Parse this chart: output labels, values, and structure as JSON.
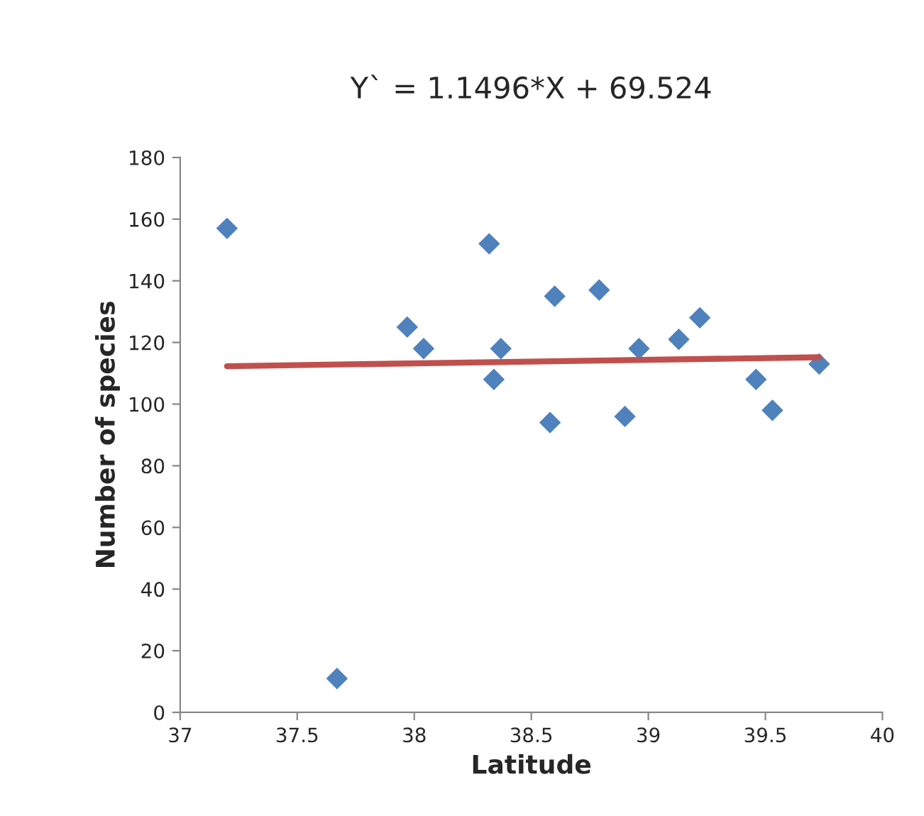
{
  "chart_data": {
    "type": "scatter",
    "title": "Y` = 1.1496*X + 69.524",
    "xlabel": "Latitude",
    "ylabel": "Number of species",
    "marker": "diamond",
    "grid": false,
    "legend": false,
    "xlim": [
      37,
      40
    ],
    "xticks": [
      37,
      37.5,
      38,
      38.5,
      39,
      39.5,
      40
    ],
    "ylim": [
      0,
      180
    ],
    "yticks": [
      0,
      20,
      40,
      60,
      80,
      100,
      120,
      140,
      160,
      180
    ],
    "series": [
      {
        "color": "#4f81bd",
        "x": [
          37.2,
          37.67,
          37.97,
          38.04,
          38.32,
          38.34,
          38.37,
          38.6,
          38.58,
          38.79,
          38.9,
          38.96,
          39.13,
          39.22,
          39.46,
          39.53,
          39.73
        ],
        "values": [
          157,
          11,
          125,
          118,
          152,
          108,
          118,
          135,
          94,
          137,
          96,
          118,
          121,
          128,
          108,
          98,
          113
        ]
      },
      {
        "type": "line",
        "color": "#c0504d",
        "marker": "none",
        "line_style": "solid",
        "x": [
          37.2,
          39.73
        ],
        "values": [
          112.3,
          115.2
        ]
      }
    ]
  }
}
